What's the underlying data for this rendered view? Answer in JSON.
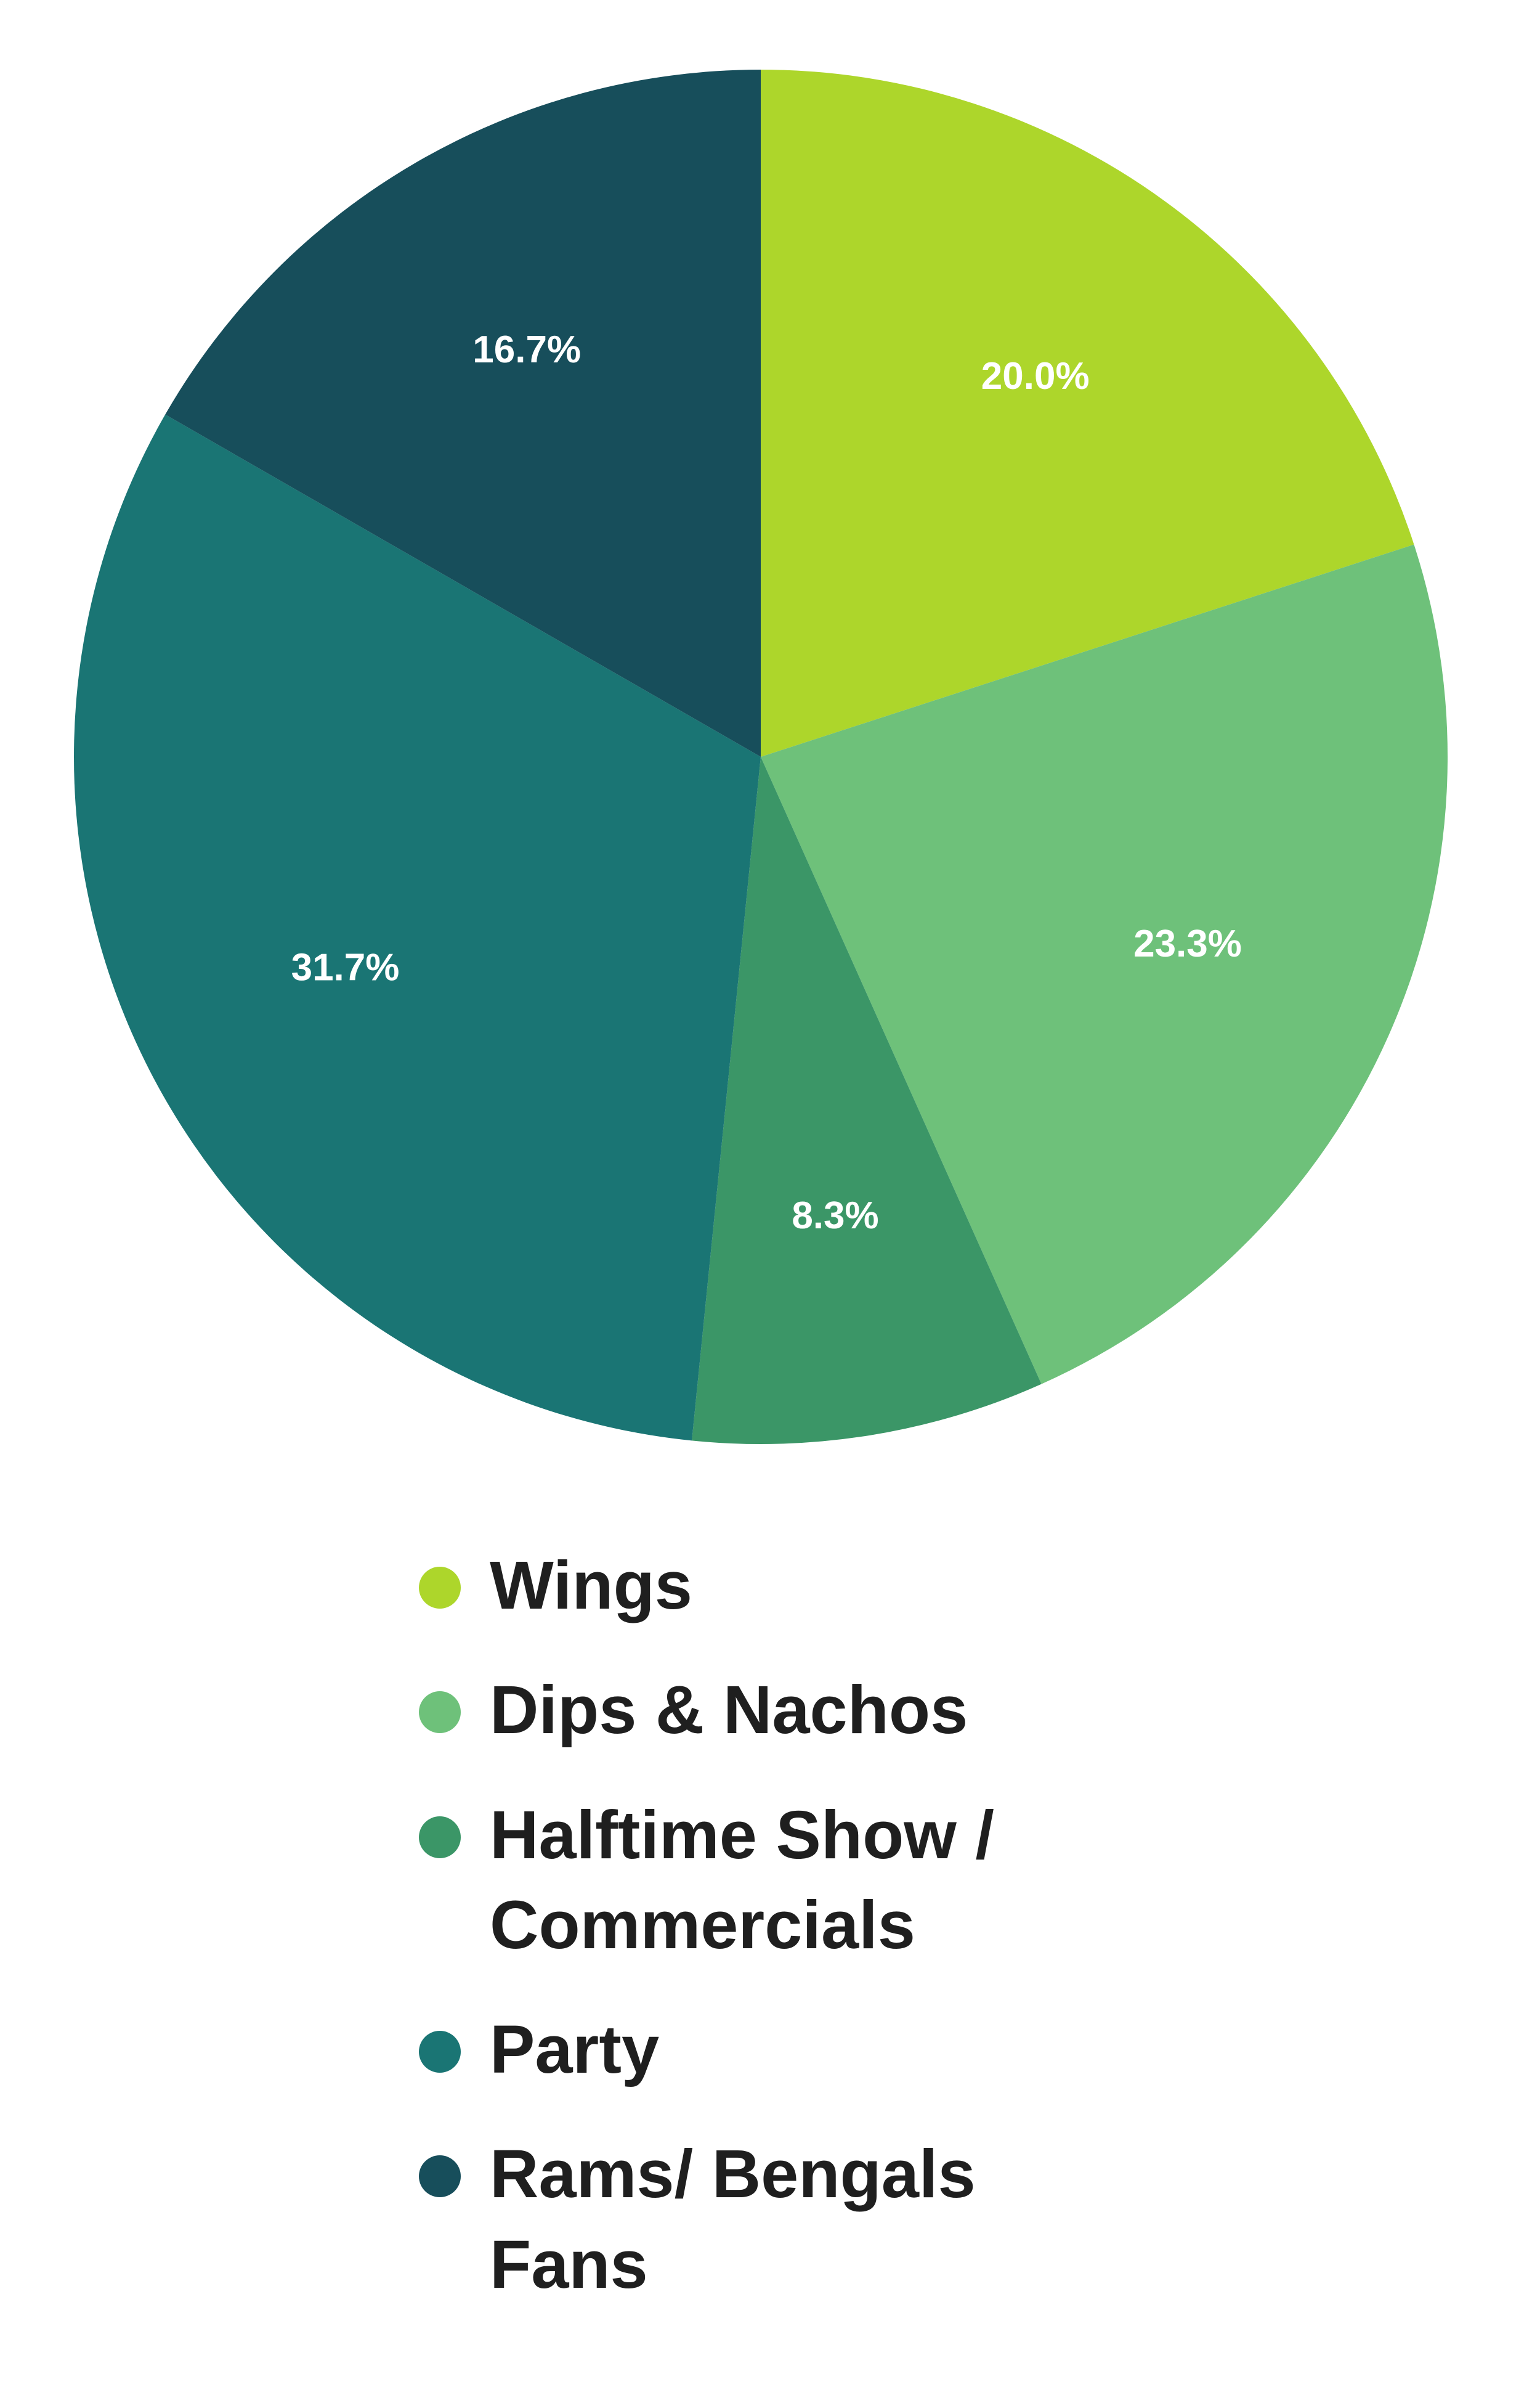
{
  "chart_data": {
    "type": "pie",
    "categories": [
      "Wings",
      "Dips & Nachos",
      "Halftime Show / Commercials",
      "Party",
      "Rams/ Bengals Fans"
    ],
    "values": [
      20.0,
      23.3,
      8.3,
      31.7,
      16.7
    ],
    "labels": [
      "20.0%",
      "23.3%",
      "8.3%",
      "31.7%",
      "16.7%"
    ],
    "colors": [
      "#add62b",
      "#6ec17a",
      "#3b9667",
      "#1a7574",
      "#174e5b"
    ],
    "start_angle_deg": 0,
    "direction": "clockwise",
    "legend_position": "bottom",
    "title": "",
    "xlabel": "",
    "ylabel": ""
  },
  "legend": {
    "items": [
      {
        "label": "Wings",
        "color": "#add62b"
      },
      {
        "label": "Dips & Nachos",
        "color": "#6ec17a"
      },
      {
        "label": "Halftime Show / Commercials",
        "color": "#3b9667"
      },
      {
        "label": "Party",
        "color": "#1a7574"
      },
      {
        "label": "Rams/ Bengals Fans",
        "color": "#174e5b"
      }
    ]
  }
}
